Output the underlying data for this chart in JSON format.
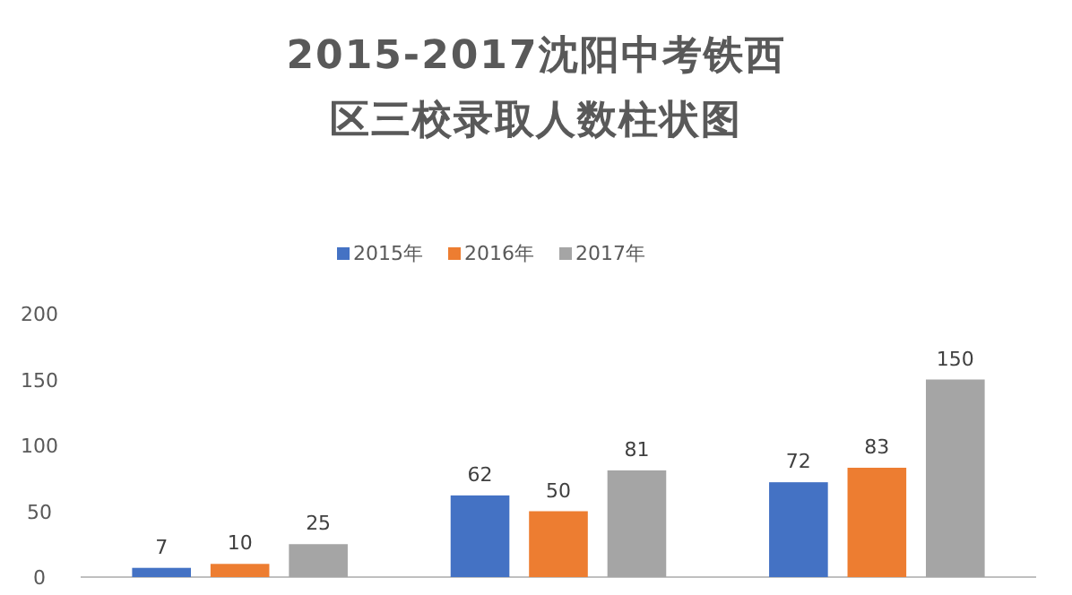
{
  "chart_data": {
    "type": "bar",
    "title": "2015-2017沈阳中考铁西区三校录取人数柱状图",
    "categories": [
      null,
      null,
      null
    ],
    "series": [
      {
        "name": "2015年",
        "color": "#4472c4",
        "values": [
          7,
          62,
          72
        ]
      },
      {
        "name": "2016年",
        "color": "#ed7d31",
        "values": [
          10,
          50,
          83
        ]
      },
      {
        "name": "2017年",
        "color": "#a5a5a5",
        "values": [
          25,
          81,
          150
        ]
      }
    ],
    "ylim": [
      0,
      200
    ],
    "yticks": [
      0,
      50,
      100,
      150,
      200
    ],
    "grid": false,
    "legend": "top",
    "data_labels": true
  }
}
